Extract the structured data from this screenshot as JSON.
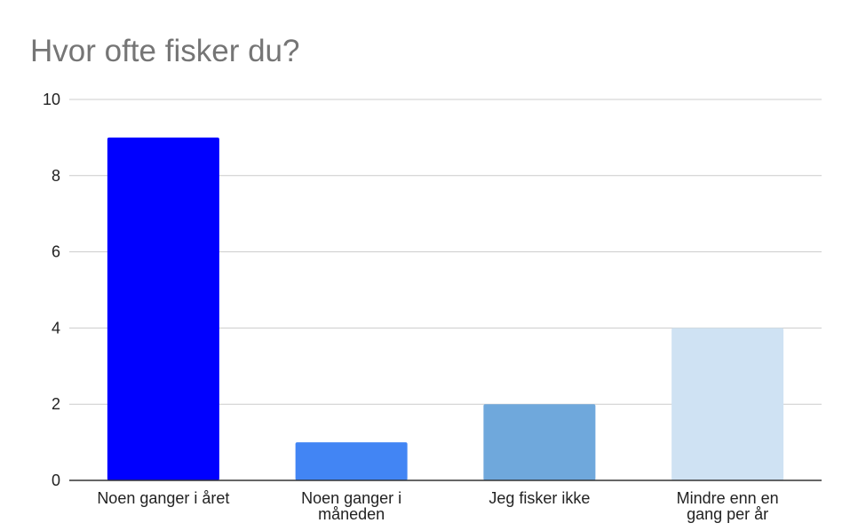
{
  "chart_data": {
    "type": "bar",
    "title": "Hvor ofte fisker du?",
    "xlabel": "",
    "ylabel": "",
    "categories": [
      "Noen ganger i året",
      "Noen ganger i måneden",
      "Jeg fisker ikke",
      "Mindre enn en gang per år"
    ],
    "category_label_lines": [
      [
        "Noen ganger i året"
      ],
      [
        "Noen ganger i",
        "måneden"
      ],
      [
        "Jeg fisker ikke"
      ],
      [
        "Mindre enn en",
        "gang per år"
      ]
    ],
    "values": [
      9,
      1,
      2,
      4
    ],
    "bar_colors": [
      "#0000ff",
      "#4285f4",
      "#6fa8dc",
      "#cfe2f3"
    ],
    "ylim": [
      0,
      10
    ],
    "yticks": [
      0,
      2,
      4,
      6,
      8,
      10
    ],
    "grid": true,
    "legend": "none"
  },
  "colors": {
    "gridline": "#cccccc",
    "baseline": "#333333",
    "title": "#757575",
    "text": "#222222"
  }
}
